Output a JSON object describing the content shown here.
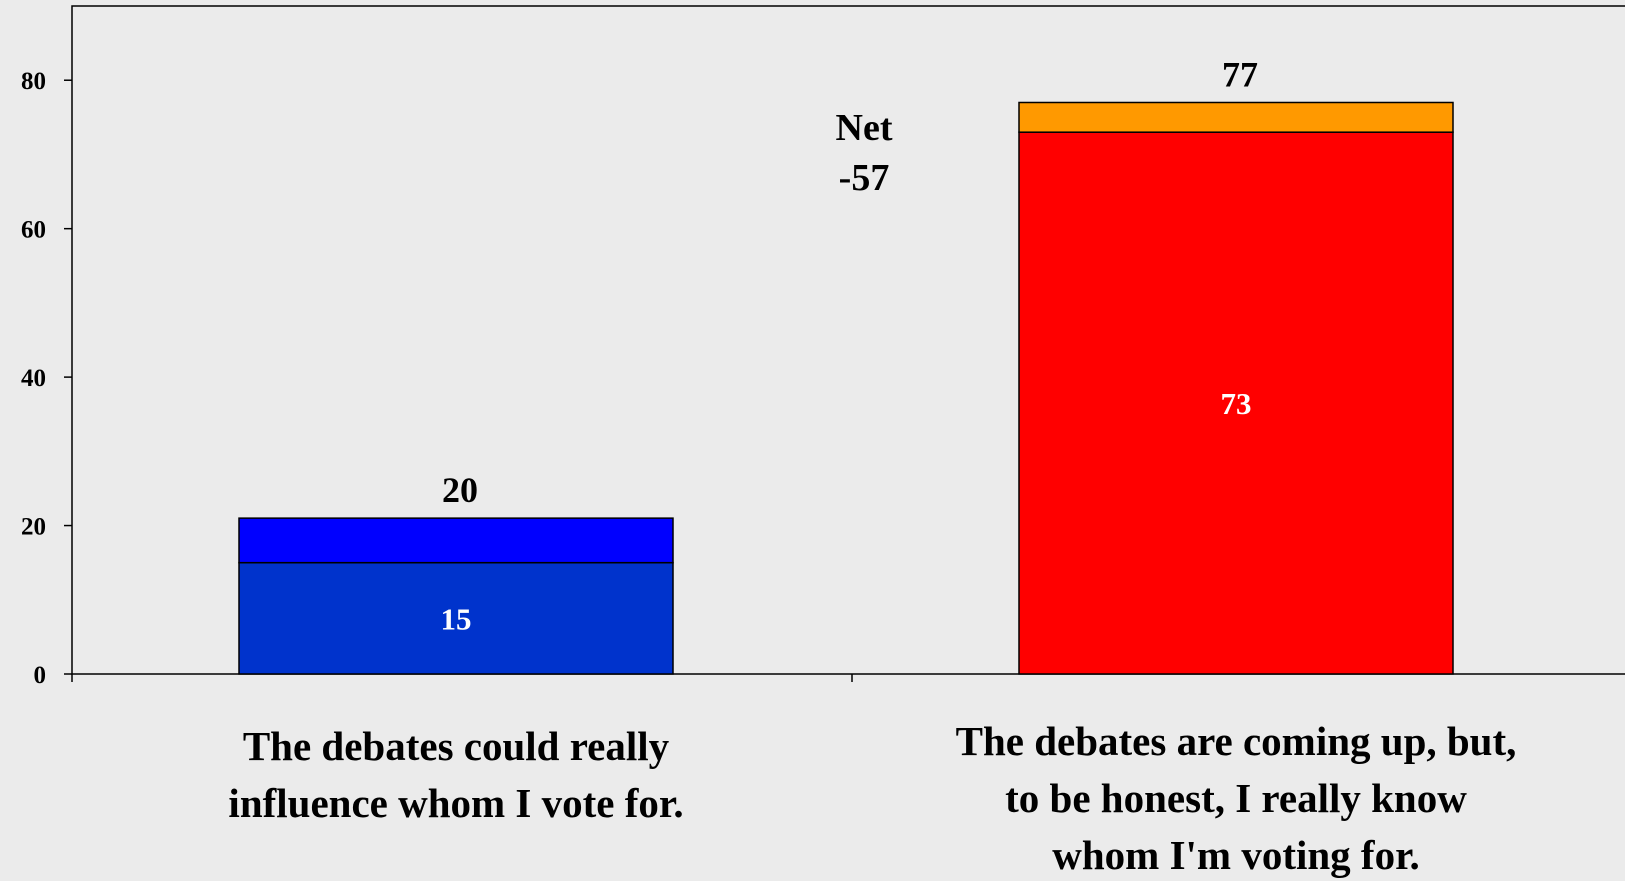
{
  "chart_data": {
    "type": "bar",
    "stacked": true,
    "ylim": [
      0,
      90
    ],
    "yticks": [
      0,
      20,
      40,
      60,
      80
    ],
    "categories": [
      [
        "The debates could really",
        "influence whom I vote for."
      ],
      [
        "The debates are coming up, but,",
        "to be honest, I really know",
        "whom I'm voting for."
      ]
    ],
    "bars": [
      {
        "inner_value": 15,
        "total": 20,
        "segments": [
          {
            "value": 15,
            "color": "#0033cc"
          },
          {
            "value": 6,
            "color": "#0000ff"
          }
        ]
      },
      {
        "inner_value": 73,
        "total": 77,
        "segments": [
          {
            "value": 73,
            "color": "#ff0000"
          },
          {
            "value": 4,
            "color": "#ff9900"
          }
        ]
      }
    ],
    "annotation": {
      "lines": [
        "Net",
        "-57"
      ]
    },
    "grid": false,
    "legend": "none"
  }
}
